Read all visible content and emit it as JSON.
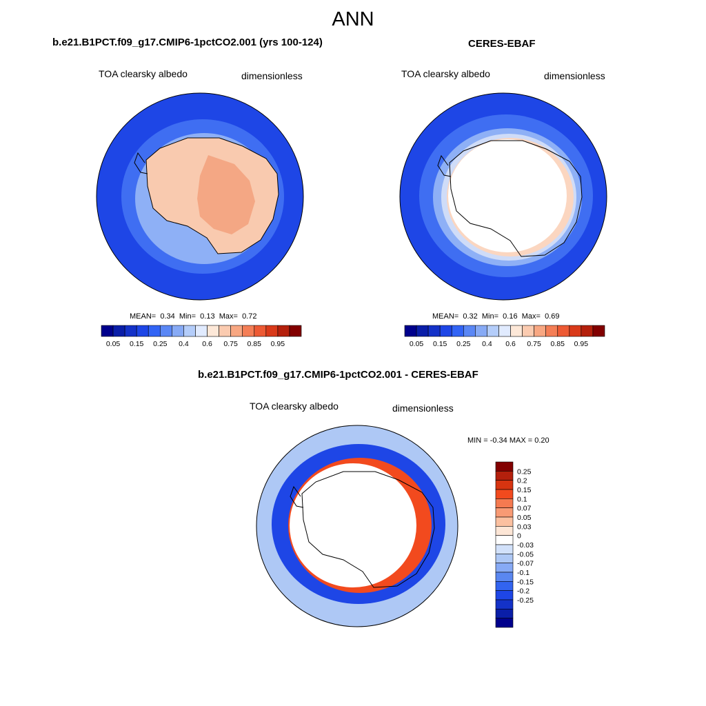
{
  "title": "ANN",
  "panels": [
    {
      "id": "model",
      "case_title": "b.e21.B1PCT.f09_g17.CMIP6-1pctCO2.001 (yrs 100-124)",
      "variable": "TOA clearsky albedo",
      "units": "dimensionless",
      "stats": {
        "mean_label": "MEAN=",
        "mean": "0.34",
        "min_label": "Min=",
        "min": "0.13",
        "max_label": "Max=",
        "max": "0.72"
      }
    },
    {
      "id": "obs",
      "case_title": "CERES-EBAF",
      "variable": "TOA clearsky albedo",
      "units": "dimensionless",
      "stats": {
        "mean_label": "MEAN=",
        "mean": "0.32",
        "min_label": "Min=",
        "min": "0.16",
        "max_label": "Max=",
        "max": "0.69"
      }
    },
    {
      "id": "diff",
      "case_title": "b.e21.B1PCT.f09_g17.CMIP6-1pctCO2.001 - CERES-EBAF",
      "variable": "TOA clearsky albedo",
      "units": "dimensionless",
      "minmax_text": "MIN =  -0.34 MAX =   0.20"
    }
  ],
  "colorbar_abs": {
    "colors": [
      "#00008c",
      "#0a1ea8",
      "#1432c8",
      "#1e46e6",
      "#3264f5",
      "#5a87f5",
      "#87aaf5",
      "#b4cdfa",
      "#e1ebff",
      "#fde8d8",
      "#fbcbb0",
      "#f8a782",
      "#f47e56",
      "#ed5a34",
      "#d93a1a",
      "#b4200c",
      "#820000"
    ],
    "tick_labels": [
      "0.05",
      "0.15",
      "0.25",
      "0.4",
      "0.6",
      "0.75",
      "0.85",
      "0.95"
    ]
  },
  "colorbar_diff": {
    "colors": [
      "#820000",
      "#b4200c",
      "#d73410",
      "#f24a1e",
      "#f57a50",
      "#f89a74",
      "#fbc0a0",
      "#fde6d6",
      "#ffffff",
      "#d2e1fa",
      "#aec8f5",
      "#87aaf5",
      "#5a87f0",
      "#3264f0",
      "#1e46e6",
      "#1432c8",
      "#0a1ea8",
      "#00008c"
    ],
    "tick_labels": [
      "0.25",
      "0.2",
      "0.15",
      "0.1",
      "0.07",
      "0.05",
      "0.03",
      "0",
      "-0.03",
      "-0.05",
      "-0.07",
      "-0.1",
      "-0.15",
      "-0.2",
      "-0.25"
    ]
  },
  "style": {
    "deep_blue": "#1e46e6",
    "medium_blue": "#3f6ef2",
    "light_blue": "#8eb0f6",
    "ice_peach": "#f9caaf",
    "ice_deep": "#f4a784",
    "red": "#e8461c",
    "white": "#ffffff"
  }
}
